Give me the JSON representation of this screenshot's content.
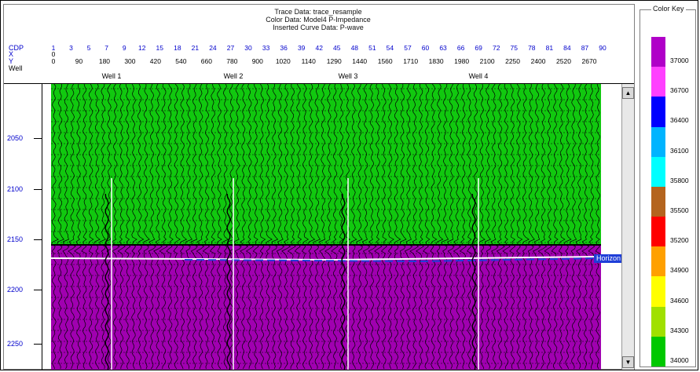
{
  "title_lines": [
    "Trace Data: trace_resample",
    "Color Data: Model4 P-Impedance",
    "Inserted Curve Data: P-wave"
  ],
  "row_labels": {
    "cdp": "CDP",
    "x": "X",
    "y": "Y",
    "well": "Well"
  },
  "cdp_ticks": [
    "1",
    "3",
    "5",
    "7",
    "9",
    "12",
    "15",
    "18",
    "21",
    "24",
    "27",
    "30",
    "33",
    "36",
    "39",
    "42",
    "45",
    "48",
    "51",
    "54",
    "57",
    "60",
    "63",
    "66",
    "69",
    "72",
    "75",
    "78",
    "81",
    "84",
    "87",
    "90"
  ],
  "x_ticks": [
    "0"
  ],
  "y_ticks": [
    "0",
    "90",
    "180",
    "300",
    "420",
    "540",
    "660",
    "780",
    "900",
    "1020",
    "1140",
    "1290",
    "1440",
    "1560",
    "1710",
    "1830",
    "1980",
    "2100",
    "2250",
    "2400",
    "2520",
    "2670"
  ],
  "wells": [
    "Well 1",
    "Well 2",
    "Well 3",
    "Well 4"
  ],
  "depth_labels": [
    "2050",
    "2100",
    "2150",
    "2200",
    "2250"
  ],
  "horizon_label": "Horizon 1",
  "scroll": {
    "up_glyph": "▲",
    "down_glyph": "▼"
  },
  "color_key": {
    "title": "Color Key",
    "labels": [
      "37000",
      "36700",
      "36400",
      "36100",
      "35800",
      "35500",
      "35200",
      "34900",
      "34600",
      "34300",
      "34000"
    ],
    "colors": [
      "#b000c8",
      "#ff40ff",
      "#0000ff",
      "#00b4ff",
      "#00ffff",
      "#b4641e",
      "#ff0000",
      "#ffa000",
      "#ffff00",
      "#a0e000",
      "#00c800"
    ]
  },
  "colors": {
    "upper_layer": "#11c80f",
    "lower_layer": "#a000b0",
    "horizon": "#1f3fd8",
    "axis_blue": "#0000cc"
  }
}
